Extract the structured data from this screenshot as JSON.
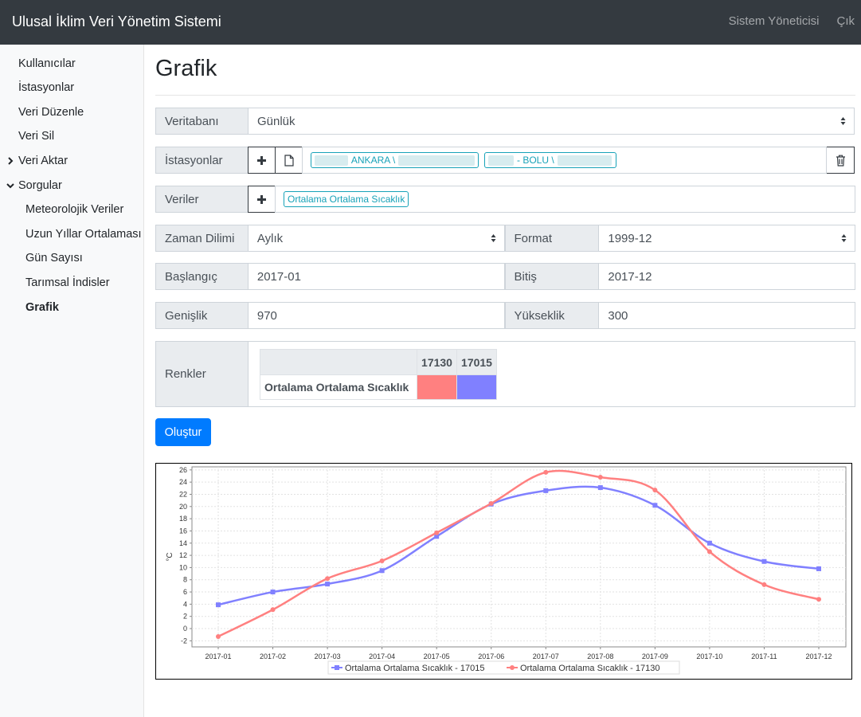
{
  "app": {
    "title": "Ulusal İklim Veri Yönetim Sistemi",
    "nav": {
      "admin": "Sistem Yöneticisi",
      "logout": "Çık"
    }
  },
  "sidebar": {
    "items": [
      "Kullanıcılar",
      "İstasyonlar",
      "Veri Düzenle",
      "Veri Sil",
      "Veri Aktar",
      "Sorgular"
    ],
    "sub_items": [
      "Meteorolojik Veriler",
      "Uzun Yıllar Ortalaması",
      "Gün Sayısı",
      "Tarımsal İndisler",
      "Grafik"
    ]
  },
  "page": {
    "title": "Grafik"
  },
  "form": {
    "database": {
      "label": "Veritabanı",
      "value": "Günlük"
    },
    "stations": {
      "label": "İstasyonlar",
      "tags": [
        "ANKARA \\",
        "- BOLU \\"
      ]
    },
    "data": {
      "label": "Veriler",
      "tags": [
        "Ortalama Ortalama Sıcaklık"
      ]
    },
    "timezone": {
      "label": "Zaman Dilimi",
      "value": "Aylık"
    },
    "format": {
      "label": "Format",
      "value": "1999-12"
    },
    "start": {
      "label": "Başlangıç",
      "value": "2017-01"
    },
    "end": {
      "label": "Bitiş",
      "value": "2017-12"
    },
    "width": {
      "label": "Genişlik",
      "value": "970"
    },
    "height": {
      "label": "Yükseklik",
      "value": "300"
    },
    "colors": {
      "label": "Renkler",
      "columns": [
        "17130",
        "17015"
      ],
      "row_label": "Ortalama Ortalama Sıcaklık",
      "swatches": [
        "#ff8080",
        "#8080ff"
      ]
    },
    "submit": "Oluştur"
  },
  "chart_data": {
    "type": "line",
    "ylabel": "°C",
    "categories": [
      "2017-01",
      "2017-02",
      "2017-03",
      "2017-04",
      "2017-05",
      "2017-06",
      "2017-07",
      "2017-08",
      "2017-09",
      "2017-10",
      "2017-11",
      "2017-12"
    ],
    "y_ticks": [
      "26",
      "24",
      "22",
      "20",
      "18",
      "16",
      "14",
      "12",
      "10",
      "8",
      "6",
      "4",
      "2",
      "0",
      "-2"
    ],
    "ylim": [
      -3,
      26.5
    ],
    "grid": true,
    "legend_position": "bottom",
    "series": [
      {
        "name": "Ortalama Ortalama Sıcaklık - 17015",
        "color": "#8080ff",
        "marker": "square",
        "values": [
          3.9,
          6.0,
          7.3,
          9.5,
          15.1,
          20.4,
          22.6,
          23.1,
          20.2,
          14.0,
          11.0,
          9.8
        ]
      },
      {
        "name": "Ortalama Ortalama Sıcaklık - 17130",
        "color": "#ff8080",
        "marker": "circle",
        "values": [
          -1.3,
          3.1,
          8.2,
          11.1,
          15.7,
          20.5,
          25.6,
          24.8,
          22.7,
          12.6,
          7.2,
          4.8
        ]
      }
    ]
  }
}
